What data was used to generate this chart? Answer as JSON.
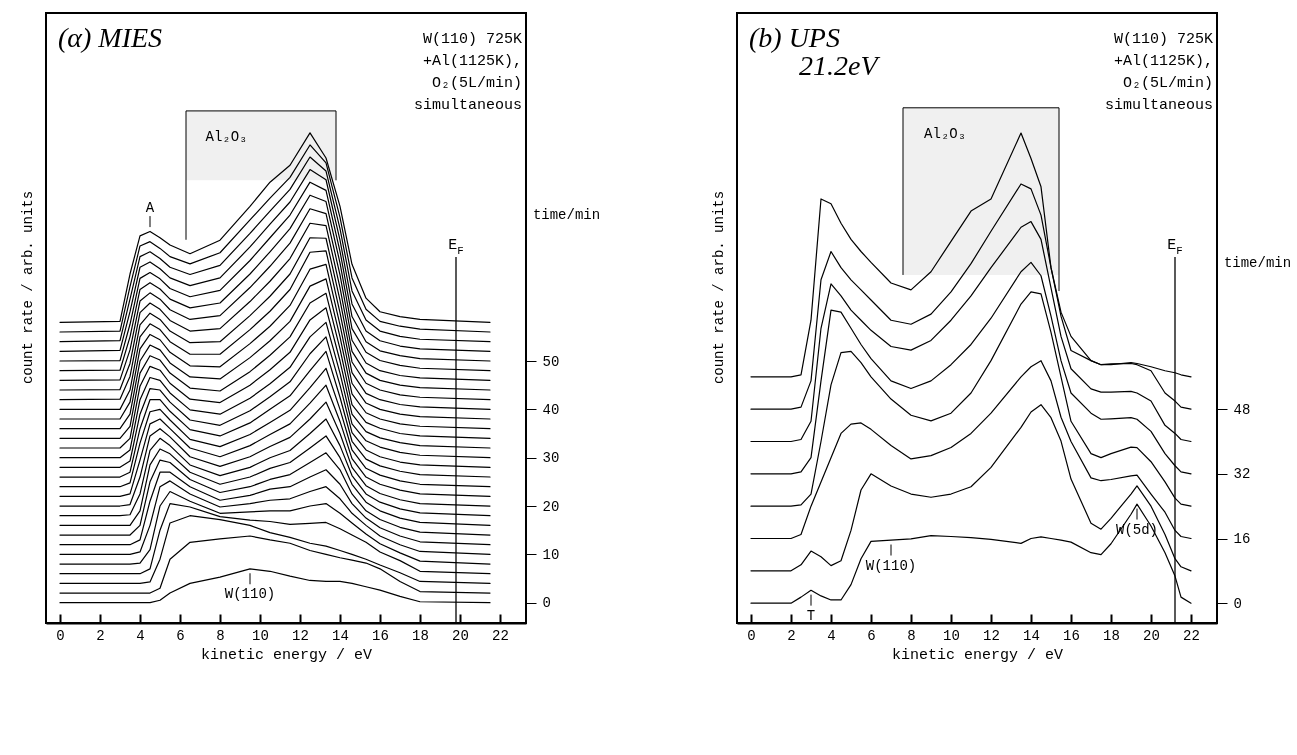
{
  "chart_data": [
    {
      "type": "line",
      "title": "(α) MIES",
      "xlabel": "kinetic energy / eV",
      "ylabel": "count rate / arb. units",
      "y2label": "time/min",
      "x": [
        0,
        3,
        3.5,
        4,
        4.5,
        5,
        5.5,
        6.5,
        8,
        9.5,
        10.5,
        11.5,
        12.5,
        13.3,
        14,
        14.6,
        15.3,
        16,
        17,
        18,
        21.5
      ],
      "xlim": [
        -0.7,
        23.3
      ],
      "xticks": [
        0,
        2,
        4,
        6,
        8,
        10,
        12,
        14,
        16,
        18,
        20,
        22
      ],
      "ylim": [
        -4.2,
        122
      ],
      "yticks": [
        0,
        10,
        20,
        30,
        40,
        50
      ],
      "ref_lines": [
        {
          "axis": "x",
          "value": 19.8,
          "label": "E$_{F}$"
        }
      ],
      "bands": [
        {
          "axis": "x",
          "from": 6.3,
          "to": 13.8,
          "label": "Al₂O₃"
        }
      ],
      "annotations": [
        "W(110) 725K",
        "+Al(1125K),",
        "O₂(5L/min)",
        "simultaneous",
        {
          "text": "A",
          "x": 4.5,
          "y": 76.8
        },
        {
          "text": "W(110)",
          "x": 9.5,
          "y": 7
        }
      ],
      "series": [
        {
          "color": "#000000",
          "values": [
            0,
            0,
            0,
            0,
            0,
            0.5,
            2,
            4,
            5.3,
            7,
            6.5,
            5.5,
            4.6,
            4.4,
            4.4,
            4,
            3.3,
            2.6,
            1.3,
            0.2,
            0
          ]
        },
        {
          "color": "#000000",
          "values": [
            2,
            2,
            2,
            2,
            2,
            3,
            9,
            12.5,
            13.2,
            13.8,
            13,
            12.3,
            10.8,
            10,
            9.3,
            8.8,
            8.2,
            7,
            4.4,
            2.3,
            2
          ]
        },
        {
          "color": "#000000",
          "values": [
            4,
            4,
            4,
            4,
            4.3,
            9,
            16.5,
            18,
            17.2,
            16,
            14.5,
            13.5,
            12.3,
            11.7,
            10.8,
            10,
            9,
            7.8,
            6.2,
            4.4,
            4
          ]
        },
        {
          "color": "#000000",
          "values": [
            6,
            6,
            6,
            6,
            7,
            15,
            20.5,
            19.8,
            17.8,
            17.1,
            16.8,
            16.2,
            16.4,
            16.6,
            15.3,
            14,
            12.5,
            10.5,
            8.7,
            6.5,
            6
          ]
        },
        {
          "color": "#000000",
          "values": [
            8,
            8,
            8,
            8.2,
            11,
            20,
            23,
            21,
            18.5,
            18.8,
            19,
            19,
            20,
            20.5,
            18.5,
            16.5,
            14.2,
            12.2,
            10.3,
            8.6,
            8
          ]
        },
        {
          "color": "#000000",
          "values": [
            10,
            10,
            10,
            10.5,
            16,
            24,
            25.2,
            22.5,
            19.8,
            20.5,
            21.2,
            21.5,
            23,
            24,
            21.5,
            18.5,
            16,
            13.8,
            12,
            10.6,
            10
          ]
        },
        {
          "color": "#000000",
          "values": [
            12,
            12,
            12,
            13,
            21,
            27,
            27,
            24,
            21.2,
            22.2,
            23.5,
            24,
            26,
            27.5,
            24.5,
            20.5,
            17.5,
            15.5,
            13.8,
            12.6,
            12
          ]
        },
        {
          "color": "#000000",
          "values": [
            14,
            14,
            14,
            16,
            25,
            29.5,
            29,
            25.5,
            22.8,
            24,
            25.5,
            26.5,
            29,
            31,
            27.5,
            22.5,
            19,
            17.2,
            15.6,
            14.6,
            14
          ]
        },
        {
          "color": "#000000",
          "values": [
            16,
            16,
            16,
            19,
            28.5,
            31.8,
            30.8,
            27,
            24.5,
            26,
            27.8,
            29,
            32,
            34.5,
            30,
            24.5,
            20.8,
            19,
            17.5,
            16.6,
            16
          ]
        },
        {
          "color": "#000000",
          "values": [
            18,
            18,
            18.2,
            22.5,
            31.5,
            34,
            32.5,
            28.5,
            26.3,
            28,
            30,
            31.5,
            35,
            38,
            32.5,
            26.3,
            22.5,
            20.8,
            19.4,
            18.6,
            18
          ]
        },
        {
          "color": "#000000",
          "values": [
            20,
            20,
            20.3,
            26,
            34.5,
            36,
            34.3,
            30.2,
            28.2,
            30.2,
            32.3,
            34.2,
            38,
            41.5,
            35,
            28,
            24.2,
            22.6,
            21.3,
            20.5,
            20
          ]
        },
        {
          "color": "#000000",
          "values": [
            22,
            22,
            22.5,
            29.5,
            37,
            38,
            36,
            32,
            30.2,
            32.5,
            34.8,
            37,
            41.3,
            45,
            37.5,
            29.8,
            26,
            24.5,
            23.3,
            22.5,
            22
          ]
        },
        {
          "color": "#000000",
          "values": [
            24,
            24,
            24.8,
            33,
            39.5,
            40,
            37.8,
            33.8,
            32.3,
            34.8,
            37.3,
            39.8,
            44.5,
            48.5,
            40,
            31.6,
            27.8,
            26.4,
            25.2,
            24.5,
            24
          ]
        },
        {
          "color": "#000000",
          "values": [
            26,
            26,
            27,
            36,
            42,
            42,
            39.6,
            35.8,
            34.5,
            37.2,
            40,
            42.8,
            48,
            52,
            42.5,
            33.4,
            29.7,
            28.3,
            27.2,
            26.5,
            26
          ]
        },
        {
          "color": "#000000",
          "values": [
            28,
            28,
            29.3,
            39,
            44.3,
            44,
            41.5,
            37.8,
            36.7,
            39.7,
            42.6,
            45.7,
            51.5,
            55,
            45,
            35.2,
            31.6,
            30.2,
            29.1,
            28.5,
            28
          ]
        },
        {
          "color": "#000000",
          "values": [
            30,
            30,
            31.6,
            42,
            46.6,
            46,
            43.4,
            39.9,
            39,
            42.3,
            45.3,
            48.7,
            55,
            58,
            47.5,
            37,
            33.5,
            32.2,
            31.1,
            30.5,
            30
          ]
        },
        {
          "color": "#000000",
          "values": [
            32,
            32,
            34,
            44.8,
            48.9,
            48.1,
            45.4,
            42.1,
            41.4,
            45,
            48.2,
            51.8,
            58.5,
            61,
            50,
            39,
            35.4,
            34.1,
            33.1,
            32.5,
            32
          ]
        },
        {
          "color": "#000000",
          "values": [
            34,
            34,
            36.5,
            47.5,
            51.1,
            50.2,
            47.5,
            44.4,
            43.8,
            47.8,
            51.2,
            55,
            62,
            64,
            52.5,
            41,
            37.3,
            36.1,
            35,
            34.5,
            34
          ]
        },
        {
          "color": "#000000",
          "values": [
            36,
            36,
            39,
            50,
            53.3,
            52.3,
            49.6,
            46.7,
            46.3,
            50.7,
            54.2,
            58.2,
            65.5,
            67,
            55,
            43.2,
            39.3,
            38,
            37,
            36.5,
            36
          ]
        },
        {
          "color": "#000000",
          "values": [
            38,
            38,
            41.5,
            52.5,
            55.5,
            54.4,
            51.8,
            49,
            48.8,
            53.6,
            57.2,
            61.5,
            69,
            70,
            57.5,
            45.4,
            41.3,
            40,
            39,
            38.5,
            38
          ]
        },
        {
          "color": "#000000",
          "values": [
            40,
            40,
            44,
            55,
            57.7,
            56.5,
            54,
            51.4,
            51.4,
            56.5,
            60.3,
            64.8,
            72.5,
            72.8,
            60,
            47.6,
            43.3,
            42,
            41,
            40.5,
            40
          ]
        },
        {
          "color": "#000000",
          "values": [
            42,
            42.1,
            46.8,
            57.5,
            59.9,
            58.6,
            56.2,
            53.8,
            54,
            59.4,
            63.4,
            68,
            75.5,
            75.4,
            62.6,
            49.8,
            45.4,
            44,
            43,
            42.5,
            42
          ]
        },
        {
          "color": "#000000",
          "values": [
            44,
            44.1,
            49.5,
            60,
            62,
            60.7,
            58.4,
            56.2,
            56.7,
            62.3,
            66.5,
            71.2,
            78.5,
            78,
            65.2,
            52,
            47.5,
            46,
            45,
            44.5,
            44
          ]
        },
        {
          "color": "#000000",
          "values": [
            46,
            46.1,
            52.3,
            62.4,
            64.1,
            62.8,
            60.6,
            58.6,
            59.4,
            65.2,
            69.6,
            74.4,
            81.5,
            80.5,
            67.8,
            54.3,
            49.6,
            48,
            47,
            46.5,
            46
          ]
        },
        {
          "color": "#000000",
          "values": [
            48,
            48.1,
            55,
            64.8,
            66.2,
            64.9,
            62.8,
            61,
            62,
            68,
            72.6,
            77.4,
            84.3,
            83,
            70.3,
            56.7,
            51.8,
            50.1,
            49.1,
            48.5,
            48
          ]
        },
        {
          "color": "#000000",
          "values": [
            50,
            50.1,
            57.6,
            67.1,
            68.3,
            67,
            65,
            63.3,
            64.6,
            70.8,
            75.5,
            80.2,
            87,
            85.3,
            72.7,
            59.2,
            54,
            52.1,
            51.1,
            50.5,
            50
          ]
        },
        {
          "color": "#000000",
          "values": [
            52,
            52.2,
            60.2,
            69.4,
            70.5,
            69.1,
            67.2,
            65.6,
            67.2,
            73.6,
            78.3,
            82.9,
            89.6,
            87.5,
            75,
            61.8,
            56.2,
            54.2,
            53.1,
            52.5,
            52
          ]
        },
        {
          "color": "#000000",
          "values": [
            54,
            54.2,
            62.8,
            71.6,
            72.6,
            71.2,
            69.4,
            67.9,
            69.8,
            76.4,
            81,
            85.5,
            92.2,
            89.3,
            77.4,
            64.5,
            58.5,
            56.2,
            55.1,
            54.5,
            54
          ]
        },
        {
          "color": "#000000",
          "values": [
            56,
            56.2,
            65.4,
            73.8,
            74.7,
            73.3,
            71.6,
            70.1,
            72.4,
            79.2,
            83.7,
            88,
            94.7,
            91,
            79.7,
            67.2,
            60.7,
            58.2,
            57.2,
            56.6,
            56
          ]
        },
        {
          "color": "#000000",
          "values": [
            58,
            58.2,
            68,
            75.9,
            76.8,
            75.5,
            74,
            72.2,
            75,
            82,
            87,
            90.5,
            97.2,
            92,
            82,
            70,
            63,
            60.2,
            59.2,
            58.6,
            58
          ]
        }
      ]
    },
    {
      "type": "line",
      "title": "(b) UPS",
      "subtitle": "21.2eV",
      "xlabel": "kinetic energy / eV",
      "ylabel": "count rate / arb. units",
      "y2label": "time/min",
      "x": [
        0,
        2,
        2.5,
        3,
        3.5,
        4,
        4.5,
        5,
        5.5,
        6,
        7,
        8,
        9,
        10,
        11,
        12,
        13.5,
        14,
        14.5,
        15,
        15.5,
        16,
        17,
        17.5,
        18,
        19,
        19.3,
        20,
        20.7,
        21.2,
        21.5,
        22
      ],
      "xlim": [
        -0.7,
        23.3
      ],
      "xticks": [
        0,
        2,
        4,
        6,
        8,
        10,
        12,
        14,
        16,
        18,
        20,
        22
      ],
      "ylim": [
        -4.9,
        146
      ],
      "yticks": [
        0,
        16,
        32,
        48
      ],
      "ref_lines": [
        {
          "axis": "x",
          "value": 21.2,
          "label": "E$_{F}$"
        }
      ],
      "bands": [
        {
          "axis": "x",
          "from": 7.6,
          "to": 15.4,
          "label": "Al₂O₃"
        }
      ],
      "annotations": [
        "W(110) 725K",
        "+Al(1125K),",
        "O₂(5L/min)",
        "simultaneous",
        {
          "text": "T",
          "x": 3,
          "y": 3.2
        },
        {
          "text": "W(110)",
          "x": 7,
          "y": 15.6
        },
        {
          "text": "W(5d)",
          "x": 19.3,
          "y": 24.5
        }
      ],
      "series": [
        {
          "color": "#000000",
          "values": [
            0,
            0,
            1.5,
            3.2,
            1.8,
            0.8,
            0.8,
            4.6,
            11,
            15.3,
            15.6,
            15.9,
            16.7,
            16.5,
            16.2,
            15.8,
            14.8,
            16,
            16.4,
            16,
            15.6,
            15.1,
            12.5,
            12,
            14.7,
            22,
            24.5,
            19.1,
            12.5,
            6.7,
            1.5,
            0
          ]
        },
        {
          "color": "#000000",
          "values": [
            8,
            8,
            9.5,
            12.9,
            11.5,
            9.3,
            10.5,
            18,
            28,
            32,
            29,
            27,
            26.2,
            27,
            28.8,
            33.6,
            43.5,
            47.3,
            49.1,
            45.9,
            40.1,
            30.7,
            19.8,
            18.3,
            21,
            27,
            29,
            24,
            17,
            11,
            9,
            8
          ]
        },
        {
          "color": "#000000",
          "values": [
            16,
            16,
            17,
            24,
            30,
            36,
            42,
            44.3,
            44.6,
            43,
            39,
            35.7,
            36.5,
            38.5,
            42,
            47,
            56,
            58.5,
            60,
            55,
            46,
            40,
            31,
            30.3,
            30.6,
            31.5,
            31.7,
            27,
            22.5,
            18,
            16.5,
            16
          ]
        },
        {
          "color": "#000000",
          "values": [
            24,
            24,
            24.3,
            27,
            40,
            54,
            62,
            62.3,
            59.5,
            56,
            50.5,
            46.5,
            45.1,
            47,
            52,
            60,
            74,
            77,
            76.5,
            67,
            56,
            45,
            37,
            36,
            37,
            38.6,
            38.5,
            35,
            30,
            26,
            24.5,
            24
          ]
        },
        {
          "color": "#000000",
          "values": [
            32,
            32,
            32.5,
            36,
            55,
            72.5,
            72,
            68,
            64,
            60.5,
            55,
            53.1,
            55,
            59,
            64,
            70.5,
            82,
            84.3,
            81,
            71,
            60,
            52,
            47,
            45.5,
            45.6,
            45.9,
            45.5,
            42.5,
            37,
            34,
            32.5,
            32
          ]
        },
        {
          "color": "#000000",
          "values": [
            40,
            40,
            40.5,
            45,
            68,
            79,
            76,
            72.5,
            70,
            67.5,
            63.5,
            62.6,
            65,
            70,
            76,
            83,
            93,
            94.4,
            90,
            78,
            66,
            58,
            53,
            52.2,
            52.2,
            52.4,
            52,
            50,
            44,
            42,
            40.5,
            40
          ]
        },
        {
          "color": "#000000",
          "values": [
            48,
            48,
            48.5,
            55,
            80,
            87,
            83,
            80,
            77.5,
            75,
            70,
            69,
            71.5,
            77,
            84,
            92,
            103.7,
            102.5,
            96,
            83,
            72,
            66,
            60,
            59,
            59.2,
            59.3,
            59,
            57.5,
            52,
            50,
            48.5,
            48
          ]
        },
        {
          "color": "#000000",
          "values": [
            56,
            56,
            56.5,
            70,
            100,
            98.8,
            94,
            90,
            87,
            84.3,
            79.2,
            77.5,
            82,
            89.5,
            97,
            100,
            116.3,
            110,
            103,
            83,
            71,
            62.5,
            60,
            59,
            59,
            59.5,
            59.3,
            58.5,
            57.5,
            57,
            56.5,
            56
          ]
        }
      ]
    }
  ]
}
